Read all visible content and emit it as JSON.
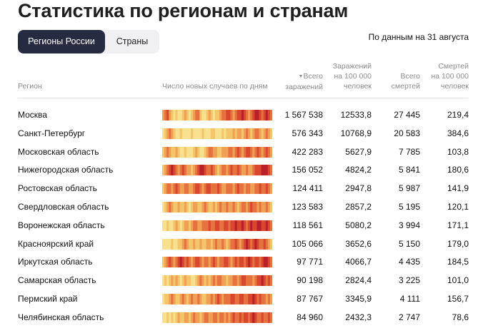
{
  "title": "Статистика по регионам и странам",
  "tabs": [
    {
      "label": "Регионы России",
      "active": true
    },
    {
      "label": "Страны",
      "active": false
    }
  ],
  "date_note": "По данным на 31 августа",
  "columns": {
    "region": "Регион",
    "daily_cases": "Число новых случаев по дням",
    "total_cases_arrow": "▼",
    "total_cases": [
      "Всего",
      "заражений"
    ],
    "cases_per_100k": [
      "Заражений",
      "на 100 000",
      "человек"
    ],
    "total_deaths": [
      "Всего",
      "смертей"
    ],
    "deaths_per_100k": [
      "Смертей",
      "на 100 000",
      "человек"
    ]
  },
  "heat_colors": [
    "#f9e08e",
    "#f5c56a",
    "#f0a054",
    "#e67240",
    "#d9472f",
    "#b8202a"
  ],
  "rows": [
    {
      "region": "Москва",
      "total_cases": "1 567 538",
      "cases_per_100k": "12533,8",
      "total_deaths": "27 445",
      "deaths_per_100k": "219,4",
      "heat": [
        2,
        3,
        4,
        2,
        1,
        0,
        1,
        0,
        0,
        1,
        2,
        1,
        0,
        1,
        2,
        3,
        3,
        1,
        0,
        0,
        1,
        2,
        1,
        0,
        1,
        1,
        2,
        3,
        3,
        4,
        4,
        3,
        2,
        3,
        4,
        4,
        5,
        4,
        3,
        2,
        3,
        4,
        5,
        5,
        4,
        3,
        4,
        5,
        4,
        3
      ]
    },
    {
      "region": "Санкт-Петербург",
      "total_cases": "576 343",
      "cases_per_100k": "10768,9",
      "total_deaths": "20 583",
      "deaths_per_100k": "384,6",
      "heat": [
        0,
        1,
        2,
        3,
        2,
        1,
        0,
        0,
        1,
        0,
        0,
        0,
        0,
        1,
        0,
        0,
        0,
        0,
        1,
        0,
        0,
        0,
        1,
        1,
        0,
        0,
        0,
        1,
        0,
        1,
        1,
        1,
        2,
        1,
        2,
        2,
        1,
        2,
        3,
        2,
        1,
        2,
        3,
        3,
        2,
        1,
        2,
        3,
        2,
        1
      ]
    },
    {
      "region": "Московская область",
      "total_cases": "422 283",
      "cases_per_100k": "5627,9",
      "total_deaths": "7 785",
      "deaths_per_100k": "103,8",
      "heat": [
        1,
        2,
        3,
        2,
        1,
        1,
        2,
        1,
        0,
        0,
        1,
        0,
        0,
        0,
        1,
        2,
        1,
        0,
        0,
        1,
        2,
        3,
        3,
        2,
        2,
        1,
        1,
        2,
        2,
        2,
        3,
        3,
        2,
        3,
        4,
        3,
        2,
        3,
        4,
        4,
        3,
        2,
        3,
        4,
        3,
        2,
        3,
        4,
        3,
        2
      ]
    },
    {
      "region": "Нижегородская область",
      "total_cases": "156 052",
      "cases_per_100k": "4824,2",
      "total_deaths": "5 841",
      "deaths_per_100k": "180,6",
      "heat": [
        1,
        2,
        3,
        4,
        5,
        4,
        3,
        2,
        3,
        4,
        3,
        2,
        2,
        1,
        2,
        3,
        4,
        5,
        5,
        4,
        3,
        3,
        4,
        3,
        2,
        1,
        2,
        3,
        3,
        2,
        3,
        4,
        3,
        3,
        4,
        3,
        2,
        2,
        3,
        2,
        2,
        3,
        4,
        4,
        4,
        5,
        5,
        5,
        4,
        3
      ]
    },
    {
      "region": "Ростовская область",
      "total_cases": "124 411",
      "cases_per_100k": "2947,8",
      "total_deaths": "5 987",
      "deaths_per_100k": "141,9",
      "heat": [
        1,
        2,
        3,
        3,
        2,
        3,
        4,
        3,
        2,
        2,
        3,
        3,
        2,
        2,
        3,
        4,
        4,
        3,
        2,
        3,
        4,
        4,
        3,
        3,
        3,
        4,
        3,
        2,
        2,
        3,
        3,
        3,
        2,
        3,
        4,
        3,
        3,
        2,
        3,
        3,
        2,
        2,
        3,
        3,
        4,
        3,
        3,
        4,
        3,
        2
      ]
    },
    {
      "region": "Свердловская область",
      "total_cases": "123 583",
      "cases_per_100k": "2857,2",
      "total_deaths": "5 195",
      "deaths_per_100k": "120,1",
      "heat": [
        0,
        1,
        2,
        3,
        2,
        1,
        1,
        2,
        1,
        1,
        2,
        1,
        0,
        1,
        2,
        2,
        1,
        1,
        2,
        3,
        2,
        1,
        1,
        2,
        1,
        2,
        3,
        2,
        2,
        3,
        2,
        2,
        3,
        2,
        1,
        2,
        3,
        3,
        2,
        3,
        4,
        3,
        3,
        2,
        3,
        2,
        2,
        3,
        2,
        1
      ]
    },
    {
      "region": "Воронежская область",
      "total_cases": "118 561",
      "cases_per_100k": "5080,2",
      "total_deaths": "3 994",
      "deaths_per_100k": "171,1",
      "heat": [
        0,
        0,
        1,
        0,
        0,
        1,
        2,
        1,
        0,
        1,
        2,
        2,
        1,
        2,
        3,
        3,
        2,
        2,
        3,
        3,
        3,
        4,
        3,
        3,
        4,
        4,
        3,
        3,
        4,
        4,
        3,
        4,
        4,
        5,
        4,
        4,
        5,
        4,
        3,
        4,
        5,
        4,
        4,
        5,
        5,
        4,
        4,
        5,
        4,
        3
      ]
    },
    {
      "region": "Красноярский край",
      "total_cases": "105 066",
      "cases_per_100k": "3652,6",
      "total_deaths": "5 150",
      "deaths_per_100k": "179,0",
      "heat": [
        0,
        0,
        0,
        0,
        1,
        0,
        0,
        1,
        1,
        2,
        3,
        2,
        1,
        1,
        2,
        1,
        1,
        2,
        1,
        1,
        2,
        2,
        1,
        2,
        3,
        2,
        2,
        3,
        2,
        1,
        2,
        3,
        3,
        4,
        3,
        2,
        3,
        4,
        5,
        4,
        3,
        4,
        5,
        4,
        3,
        3,
        4,
        3,
        2,
        1
      ]
    },
    {
      "region": "Иркутская область",
      "total_cases": "97 771",
      "cases_per_100k": "4066,7",
      "total_deaths": "4 435",
      "deaths_per_100k": "184,5",
      "heat": [
        1,
        2,
        3,
        4,
        3,
        2,
        3,
        4,
        5,
        4,
        3,
        4,
        3,
        2,
        3,
        4,
        4,
        3,
        2,
        3,
        3,
        2,
        3,
        4,
        3,
        2,
        3,
        3,
        4,
        4,
        3,
        2,
        3,
        4,
        3,
        4,
        4,
        3,
        4,
        5,
        4,
        3,
        4,
        4,
        3,
        4,
        5,
        5,
        4,
        3
      ]
    },
    {
      "region": "Самарская область",
      "total_cases": "90 198",
      "cases_per_100k": "2824,4",
      "total_deaths": "3 225",
      "deaths_per_100k": "101,0",
      "heat": [
        0,
        1,
        0,
        1,
        2,
        1,
        2,
        1,
        0,
        1,
        2,
        1,
        1,
        0,
        0,
        1,
        2,
        3,
        2,
        1,
        2,
        1,
        2,
        3,
        2,
        3,
        3,
        2,
        2,
        1,
        2,
        2,
        3,
        3,
        2,
        3,
        4,
        4,
        3,
        3,
        3,
        2,
        3,
        4,
        4,
        5,
        4,
        3,
        4,
        3
      ]
    },
    {
      "region": "Пермский край",
      "total_cases": "87 767",
      "cases_per_100k": "3345,9",
      "total_deaths": "4 111",
      "deaths_per_100k": "156,7",
      "heat": [
        0,
        1,
        1,
        2,
        3,
        2,
        1,
        1,
        2,
        3,
        2,
        1,
        2,
        3,
        2,
        2,
        3,
        2,
        1,
        1,
        2,
        2,
        3,
        2,
        3,
        4,
        3,
        2,
        3,
        3,
        3,
        4,
        4,
        3,
        3,
        4,
        4,
        3,
        3,
        4,
        4,
        5,
        4,
        3,
        4,
        3,
        3,
        2,
        3,
        2
      ]
    },
    {
      "region": "Челябинская область",
      "total_cases": "84 960",
      "cases_per_100k": "2432,3",
      "total_deaths": "2 747",
      "deaths_per_100k": "78,6",
      "heat": [
        0,
        0,
        1,
        0,
        1,
        0,
        1,
        2,
        1,
        1,
        2,
        2,
        1,
        2,
        3,
        2,
        2,
        1,
        2,
        3,
        3,
        2,
        2,
        3,
        3,
        2,
        3,
        3,
        2,
        3,
        2,
        3,
        4,
        3,
        3,
        4,
        3,
        4,
        4,
        3,
        4,
        5,
        4,
        3,
        3,
        4,
        3,
        3,
        4,
        3
      ]
    }
  ]
}
